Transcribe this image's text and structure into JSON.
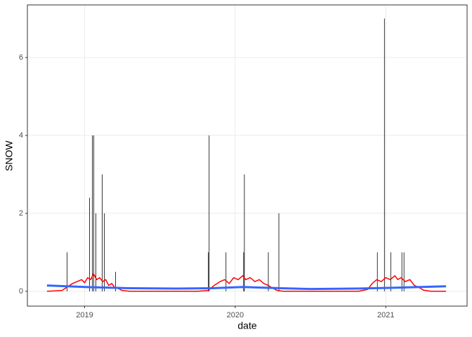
{
  "chart_data": {
    "type": "line",
    "x_label": "date",
    "y_label": "SNOW",
    "xlim": [
      2018.62,
      2021.54
    ],
    "xticks": [
      2019,
      2020,
      2021
    ],
    "ylim": [
      -0.38,
      7.35
    ],
    "yticks": [
      0,
      2,
      4,
      6
    ],
    "grid": true,
    "series": [
      {
        "geom": "bar",
        "color": "#000000",
        "x": [
          2018.883,
          2019.033,
          2019.051,
          2019.061,
          2019.075,
          2019.117,
          2019.131,
          2019.206,
          2019.822,
          2019.827,
          2019.939,
          2020.056,
          2020.061,
          2020.22,
          2020.29,
          2020.944,
          2020.991,
          2021.033,
          2021.107,
          2021.121
        ],
        "values": [
          1,
          2.4,
          4,
          4,
          2,
          3,
          2,
          0.5,
          1,
          4,
          1,
          1,
          3,
          1,
          2,
          1,
          7,
          1,
          1,
          1
        ]
      },
      {
        "geom": "line",
        "color": "#ff0000",
        "x": [
          2018.75,
          2018.85,
          2018.88,
          2018.92,
          2018.95,
          2018.98,
          2019.0,
          2019.02,
          2019.04,
          2019.06,
          2019.08,
          2019.1,
          2019.12,
          2019.14,
          2019.16,
          2019.18,
          2019.2,
          2019.22,
          2019.25,
          2019.3,
          2019.75,
          2019.82,
          2019.86,
          2019.9,
          2019.93,
          2019.96,
          2019.99,
          2020.02,
          2020.05,
          2020.07,
          2020.1,
          2020.13,
          2020.16,
          2020.19,
          2020.22,
          2020.25,
          2020.28,
          2020.32,
          2020.82,
          2020.88,
          2020.91,
          2020.94,
          2020.97,
          2021.0,
          2021.03,
          2021.06,
          2021.08,
          2021.1,
          2021.13,
          2021.16,
          2021.19,
          2021.22,
          2021.25,
          2021.3,
          2021.4
        ],
        "values": [
          0,
          0.02,
          0.1,
          0.2,
          0.25,
          0.3,
          0.22,
          0.35,
          0.3,
          0.45,
          0.3,
          0.35,
          0.25,
          0.3,
          0.15,
          0.2,
          0.1,
          0.08,
          0.02,
          0,
          0,
          0.02,
          0.15,
          0.25,
          0.3,
          0.2,
          0.35,
          0.3,
          0.4,
          0.3,
          0.35,
          0.25,
          0.3,
          0.2,
          0.15,
          0.08,
          0.02,
          0,
          0,
          0.05,
          0.2,
          0.3,
          0.25,
          0.35,
          0.3,
          0.4,
          0.3,
          0.35,
          0.25,
          0.3,
          0.15,
          0.1,
          0.03,
          0,
          0
        ]
      },
      {
        "geom": "smooth",
        "color": "#3366ff",
        "x": [
          2018.75,
          2019.0,
          2019.3,
          2019.6,
          2019.85,
          2020.05,
          2020.3,
          2020.5,
          2020.8,
          2021.05,
          2021.4
        ],
        "values": [
          0.15,
          0.11,
          0.08,
          0.07,
          0.08,
          0.11,
          0.08,
          0.06,
          0.07,
          0.09,
          0.13
        ]
      }
    ]
  }
}
